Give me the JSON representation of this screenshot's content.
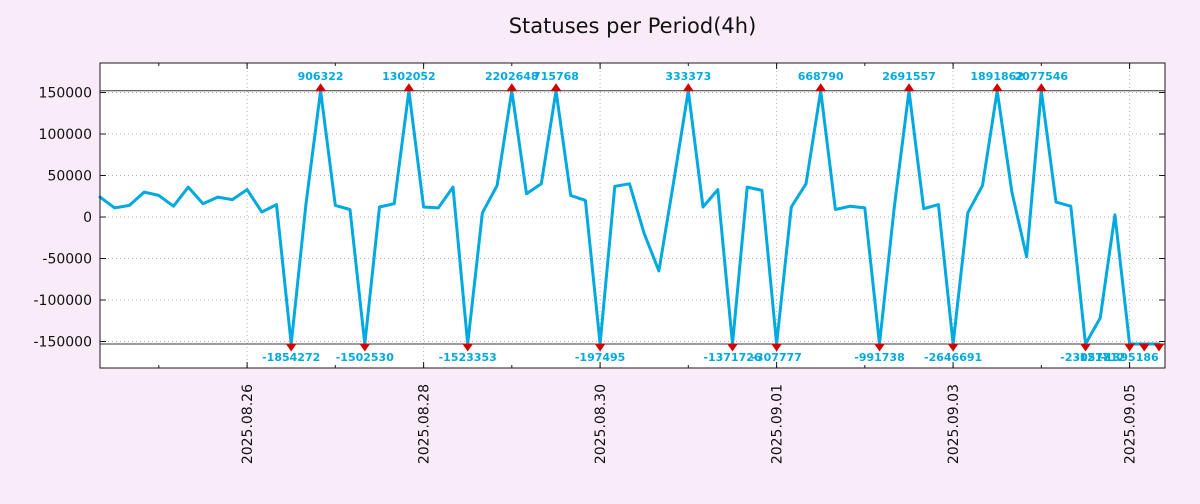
{
  "title": "Statuses per Period(4h)",
  "colors": {
    "background": "#f9ecf8",
    "plot_background": "#ffffff",
    "line": "#00aadf",
    "marker": "#d40000",
    "grid": "#bdadbd",
    "border": "#1a1a1a",
    "clip_line": "#3a3a3a",
    "spike_label": "#00aadf",
    "text": "#111111"
  },
  "chart_data": {
    "type": "line",
    "title": "Statuses per Period(4h)",
    "xlabel": "",
    "ylabel": "",
    "x_start": "2025-08-24 08:00",
    "x_step_hours": 4,
    "ylim": [
      -182000,
      185500
    ],
    "grid": true,
    "legend": false,
    "yticks": [
      150000,
      100000,
      50000,
      0,
      -50000,
      -100000,
      -150000
    ],
    "xticks": [
      {
        "index": 10,
        "label": "2025.08.26"
      },
      {
        "index": 22,
        "label": "2025.08.28"
      },
      {
        "index": 34,
        "label": "2025.08.30"
      },
      {
        "index": 46,
        "label": "2025.09.01"
      },
      {
        "index": 58,
        "label": "2025.09.03"
      },
      {
        "index": 70,
        "label": "2025.09.05"
      }
    ],
    "clip_high": 152000,
    "clip_low": -153000,
    "values": [
      24000,
      11000,
      14000,
      30000,
      26000,
      13000,
      36000,
      16000,
      24000,
      21000,
      33000,
      6000,
      15000,
      -1854272,
      15000,
      906322,
      14000,
      9000,
      -1502530,
      12000,
      16000,
      1302052,
      12000,
      11000,
      36000,
      -1523353,
      5000,
      38000,
      2202648,
      28000,
      40000,
      715768,
      26000,
      20000,
      -197495,
      37000,
      40000,
      -20000,
      -65000,
      42000,
      333373,
      12000,
      33000,
      -1371726,
      36000,
      32000,
      -307777,
      12000,
      40000,
      668790,
      9000,
      13000,
      11000,
      -991738,
      12000,
      2691557,
      10000,
      15000,
      -2646691,
      5000,
      38000,
      1891862,
      30000,
      -48000,
      2077546,
      18000,
      13000,
      -230578,
      -121712,
      2500,
      -1395186,
      -200000,
      -200000
    ],
    "spike_labels_top": [
      {
        "index": 15,
        "label": "906322"
      },
      {
        "index": 21,
        "label": "1302052"
      },
      {
        "index": 28,
        "label": "2202648"
      },
      {
        "index": 31,
        "label": "715768"
      },
      {
        "index": 40,
        "label": "333373"
      },
      {
        "index": 49,
        "label": "668790"
      },
      {
        "index": 55,
        "label": "2691557"
      },
      {
        "index": 61,
        "label": "1891862"
      },
      {
        "index": 64,
        "label": "2077546"
      }
    ],
    "spike_labels_bottom": [
      {
        "index": 13,
        "label": "-1854272"
      },
      {
        "index": 18,
        "label": "-1502530"
      },
      {
        "index": 25,
        "label": "-1523353"
      },
      {
        "index": 34,
        "label": "-197495"
      },
      {
        "index": 43,
        "label": "-1371726"
      },
      {
        "index": 46,
        "label": "-307777"
      },
      {
        "index": 53,
        "label": "-991738"
      },
      {
        "index": 58,
        "label": "-2646691"
      },
      {
        "index": 67,
        "label": "-230578"
      },
      {
        "index": 68,
        "label": "-121712"
      },
      {
        "index": 70,
        "label": "-1395186"
      }
    ]
  }
}
